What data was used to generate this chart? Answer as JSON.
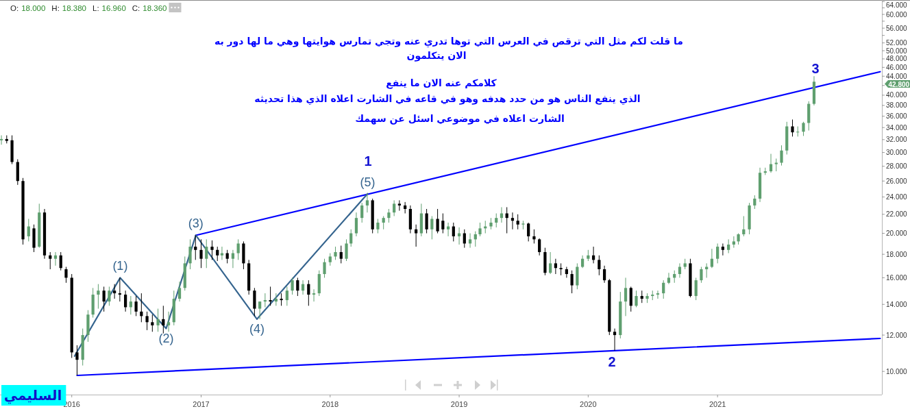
{
  "chart_data": {
    "type": "candlestick",
    "title": "O: 18.000 H: 18.380 L: 16.960 C: 18.360",
    "log": "y",
    "xlim": [
      "2015-06-12",
      "2022-04-11"
    ],
    "ylim": [
      8.9,
      64.5
    ],
    "xticks": [
      "2016",
      "2017",
      "2018",
      "2019",
      "2020",
      "2021"
    ],
    "yticks": [
      {
        "value": 10,
        "label": "10.000"
      },
      {
        "value": 12,
        "label": "12.000"
      },
      {
        "value": 14,
        "label": "14.000"
      },
      {
        "value": 16,
        "label": "16.000"
      },
      {
        "value": 18,
        "label": "18.000"
      },
      {
        "value": 20,
        "label": "20.000"
      },
      {
        "value": 22,
        "label": "22.000"
      },
      {
        "value": 24,
        "label": "24.000"
      },
      {
        "value": 26,
        "label": "26.000"
      },
      {
        "value": 28,
        "label": "28.000"
      },
      {
        "value": 30,
        "label": "30.000"
      },
      {
        "value": 32,
        "label": "32.000"
      },
      {
        "value": 34,
        "label": "34.000"
      },
      {
        "value": 36,
        "label": "36.000"
      },
      {
        "value": 38,
        "label": "38.000"
      },
      {
        "value": 40,
        "label": "40.000"
      },
      {
        "value": 42,
        "label": null
      },
      {
        "value": 44,
        "label": "44.000"
      },
      {
        "value": 46,
        "label": "46.000"
      },
      {
        "value": 48,
        "label": "48.000"
      },
      {
        "value": 50,
        "label": "50.000"
      },
      {
        "value": 52,
        "label": "52.000"
      },
      {
        "value": 54,
        "label": null
      },
      {
        "value": 56,
        "label": "56.000"
      },
      {
        "value": 58,
        "label": null
      },
      {
        "value": 60,
        "label": "60.000"
      },
      {
        "value": 62,
        "label": null
      },
      {
        "value": 64,
        "label": "64.000"
      }
    ],
    "x": [
      "2015-06-16",
      "2015-07-01",
      "2015-07-16",
      "2015-08-01",
      "2015-08-16",
      "2015-09-01",
      "2015-09-16",
      "2015-10-01",
      "2015-10-16",
      "2015-11-01",
      "2015-11-16",
      "2015-12-01",
      "2015-12-16",
      "2016-01-01",
      "2016-01-16",
      "2016-02-01",
      "2016-02-16",
      "2016-03-01",
      "2016-03-16",
      "2016-04-01",
      "2016-04-16",
      "2016-05-01",
      "2016-05-16",
      "2016-06-01",
      "2016-06-16",
      "2016-07-01",
      "2016-07-16",
      "2016-08-01",
      "2016-08-16",
      "2016-09-01",
      "2016-09-16",
      "2016-10-01",
      "2016-10-16",
      "2016-11-01",
      "2016-11-16",
      "2016-12-01",
      "2016-12-16",
      "2017-01-01",
      "2017-01-16",
      "2017-02-01",
      "2017-02-16",
      "2017-03-01",
      "2017-03-16",
      "2017-04-01",
      "2017-04-16",
      "2017-05-01",
      "2017-05-16",
      "2017-06-01",
      "2017-06-16",
      "2017-07-01",
      "2017-07-16",
      "2017-08-01",
      "2017-08-16",
      "2017-09-01",
      "2017-09-16",
      "2017-10-01",
      "2017-10-16",
      "2017-11-01",
      "2017-11-16",
      "2017-12-01",
      "2017-12-16",
      "2018-01-01",
      "2018-01-16",
      "2018-02-01",
      "2018-02-16",
      "2018-03-01",
      "2018-03-16",
      "2018-04-01",
      "2018-04-16",
      "2018-05-01",
      "2018-05-16",
      "2018-06-01",
      "2018-06-16",
      "2018-07-01",
      "2018-07-16",
      "2018-08-01",
      "2018-08-16",
      "2018-09-01",
      "2018-09-16",
      "2018-10-01",
      "2018-10-16",
      "2018-11-01",
      "2018-11-16",
      "2018-12-01",
      "2018-12-16",
      "2019-01-01",
      "2019-01-16",
      "2019-02-01",
      "2019-02-16",
      "2019-03-01",
      "2019-03-16",
      "2019-04-01",
      "2019-04-16",
      "2019-05-01",
      "2019-05-16",
      "2019-06-01",
      "2019-06-16",
      "2019-07-01",
      "2019-07-16",
      "2019-08-01",
      "2019-08-16",
      "2019-09-01",
      "2019-09-16",
      "2019-10-01",
      "2019-10-16",
      "2019-11-01",
      "2019-11-16",
      "2019-12-01",
      "2019-12-16",
      "2020-01-01",
      "2020-01-16",
      "2020-02-01",
      "2020-02-16",
      "2020-03-01",
      "2020-03-16",
      "2020-04-01",
      "2020-04-16",
      "2020-05-01",
      "2020-05-16",
      "2020-06-01",
      "2020-06-16",
      "2020-07-01",
      "2020-07-16",
      "2020-08-01",
      "2020-08-16",
      "2020-09-01",
      "2020-09-16",
      "2020-10-01",
      "2020-10-16",
      "2020-11-01",
      "2020-11-16",
      "2020-12-01",
      "2020-12-16",
      "2021-01-01",
      "2021-01-16",
      "2021-02-01",
      "2021-02-16",
      "2021-03-01",
      "2021-03-16",
      "2021-04-01",
      "2021-04-16",
      "2021-05-01",
      "2021-05-16",
      "2021-06-01",
      "2021-06-16",
      "2021-07-01",
      "2021-07-16",
      "2021-08-01",
      "2021-08-16",
      "2021-09-01",
      "2021-09-16",
      "2021-10-01"
    ],
    "ohlc": [
      [
        31.9,
        32.7,
        31.2,
        32.1
      ],
      [
        32.1,
        32.7,
        31.4,
        31.8
      ],
      [
        31.9,
        32.7,
        28.3,
        28.6
      ],
      [
        28.6,
        29.0,
        25.5,
        26.0
      ],
      [
        26.0,
        26.4,
        18.9,
        19.4
      ],
      [
        19.7,
        21.5,
        19.2,
        20.7
      ],
      [
        20.5,
        20.9,
        18.2,
        18.6
      ],
      [
        18.7,
        23.2,
        18.6,
        22.2
      ],
      [
        22.2,
        22.6,
        17.6,
        17.9
      ],
      [
        17.9,
        18.2,
        16.7,
        17.6
      ],
      [
        17.6,
        18.2,
        17.0,
        17.9
      ],
      [
        17.9,
        18.2,
        16.6,
        16.8
      ],
      [
        16.7,
        16.9,
        15.6,
        16.0
      ],
      [
        16.0,
        16.3,
        10.7,
        11.0
      ],
      [
        11.0,
        11.4,
        9.8,
        10.6
      ],
      [
        10.6,
        12.4,
        10.3,
        12.0
      ],
      [
        12.0,
        13.6,
        11.6,
        13.3
      ],
      [
        13.3,
        15.2,
        13.1,
        14.7
      ],
      [
        14.7,
        15.5,
        13.7,
        15.0
      ],
      [
        15.0,
        15.3,
        13.5,
        14.2
      ],
      [
        14.2,
        15.3,
        13.9,
        15.0
      ],
      [
        15.0,
        15.5,
        14.4,
        14.8
      ],
      [
        14.8,
        16.0,
        14.2,
        14.7
      ],
      [
        14.7,
        15.0,
        13.5,
        13.8
      ],
      [
        13.8,
        14.6,
        13.3,
        14.2
      ],
      [
        14.2,
        14.6,
        13.2,
        13.5
      ],
      [
        13.5,
        14.8,
        12.8,
        13.2
      ],
      [
        13.2,
        13.5,
        12.3,
        12.8
      ],
      [
        12.8,
        13.3,
        12.2,
        12.6
      ],
      [
        12.6,
        13.7,
        12.2,
        13.0
      ],
      [
        13.0,
        13.9,
        12.1,
        12.6
      ],
      [
        12.6,
        13.5,
        12.2,
        12.8
      ],
      [
        12.8,
        15.0,
        12.6,
        14.4
      ],
      [
        14.4,
        15.7,
        14.2,
        15.2
      ],
      [
        15.2,
        17.8,
        15.0,
        17.2
      ],
      [
        17.2,
        19.4,
        16.7,
        18.7
      ],
      [
        18.7,
        19.8,
        17.5,
        18.4
      ],
      [
        18.4,
        19.4,
        16.8,
        17.6
      ],
      [
        17.6,
        19.4,
        16.8,
        18.7
      ],
      [
        18.7,
        19.3,
        17.5,
        18.4
      ],
      [
        18.4,
        18.7,
        17.4,
        17.9
      ],
      [
        17.9,
        18.7,
        17.5,
        18.1
      ],
      [
        18.1,
        18.4,
        17.2,
        17.6
      ],
      [
        17.6,
        18.4,
        16.8,
        18.1
      ],
      [
        18.1,
        19.4,
        17.5,
        19.0
      ],
      [
        19.0,
        19.2,
        16.7,
        17.2
      ],
      [
        17.2,
        17.5,
        14.7,
        15.0
      ],
      [
        15.0,
        15.2,
        13.2,
        13.7
      ],
      [
        13.7,
        14.2,
        13.0,
        14.2
      ],
      [
        14.2,
        14.8,
        13.8,
        14.3
      ],
      [
        14.3,
        15.3,
        13.9,
        14.2
      ],
      [
        14.2,
        14.8,
        13.9,
        14.4
      ],
      [
        14.4,
        14.8,
        13.9,
        14.3
      ],
      [
        14.3,
        15.3,
        13.9,
        15.0
      ],
      [
        15.0,
        16.0,
        14.7,
        15.8
      ],
      [
        15.8,
        16.0,
        14.6,
        15.0
      ],
      [
        15.0,
        15.8,
        14.7,
        15.5
      ],
      [
        15.5,
        15.8,
        13.9,
        14.7
      ],
      [
        14.7,
        15.1,
        14.2,
        14.8
      ],
      [
        14.8,
        16.6,
        14.6,
        16.3
      ],
      [
        16.3,
        17.6,
        16.0,
        17.3
      ],
      [
        17.3,
        18.1,
        17.0,
        17.8
      ],
      [
        17.8,
        18.7,
        17.5,
        18.2
      ],
      [
        18.2,
        18.8,
        17.2,
        17.6
      ],
      [
        17.6,
        19.4,
        17.4,
        19.0
      ],
      [
        19.0,
        20.4,
        18.7,
        20.0
      ],
      [
        20.0,
        22.2,
        19.7,
        21.6
      ],
      [
        21.6,
        23.3,
        21.1,
        23.0
      ],
      [
        23.0,
        24.4,
        22.2,
        23.6
      ],
      [
        23.6,
        23.8,
        20.0,
        20.4
      ],
      [
        20.4,
        21.5,
        20.0,
        21.1
      ],
      [
        21.1,
        21.8,
        20.4,
        21.6
      ],
      [
        21.6,
        22.6,
        21.1,
        22.2
      ],
      [
        22.2,
        23.6,
        21.8,
        23.2
      ],
      [
        23.2,
        23.6,
        22.4,
        23.0
      ],
      [
        23.0,
        23.4,
        22.1,
        22.6
      ],
      [
        22.6,
        23.0,
        20.0,
        20.4
      ],
      [
        20.4,
        20.9,
        18.7,
        20.0
      ],
      [
        20.0,
        23.2,
        19.7,
        22.1
      ],
      [
        22.1,
        22.6,
        20.0,
        20.4
      ],
      [
        20.4,
        21.8,
        19.4,
        21.5
      ],
      [
        21.5,
        22.6,
        20.0,
        20.2
      ],
      [
        21.3,
        22.1,
        20.0,
        20.4
      ],
      [
        20.4,
        21.1,
        19.7,
        20.7
      ],
      [
        20.7,
        21.1,
        19.2,
        19.7
      ],
      [
        19.7,
        20.6,
        18.9,
        20.0
      ],
      [
        20.0,
        20.4,
        18.6,
        19.0
      ],
      [
        19.0,
        20.0,
        18.6,
        19.4
      ],
      [
        19.4,
        20.2,
        18.7,
        19.9
      ],
      [
        19.9,
        21.1,
        19.7,
        20.5
      ],
      [
        20.5,
        21.3,
        20.0,
        20.7
      ],
      [
        20.7,
        21.6,
        20.4,
        21.1
      ],
      [
        21.1,
        22.1,
        20.6,
        21.6
      ],
      [
        21.6,
        22.8,
        21.1,
        22.1
      ],
      [
        22.1,
        22.8,
        20.0,
        21.6
      ],
      [
        21.6,
        22.2,
        20.4,
        21.3
      ],
      [
        21.3,
        22.0,
        20.4,
        20.9
      ],
      [
        20.9,
        21.3,
        20.4,
        21.0
      ],
      [
        21.0,
        21.1,
        19.2,
        19.7
      ],
      [
        19.7,
        20.4,
        19.0,
        19.4
      ],
      [
        19.4,
        19.5,
        17.9,
        18.2
      ],
      [
        18.2,
        18.6,
        16.2,
        16.4
      ],
      [
        16.4,
        18.2,
        16.3,
        17.2
      ],
      [
        17.2,
        17.6,
        16.3,
        16.8
      ],
      [
        16.8,
        17.2,
        16.2,
        16.7
      ],
      [
        16.7,
        16.9,
        16.0,
        16.3
      ],
      [
        16.3,
        16.6,
        14.8,
        15.4
      ],
      [
        15.4,
        17.2,
        15.1,
        16.9
      ],
      [
        16.9,
        17.9,
        16.8,
        17.6
      ],
      [
        17.6,
        18.4,
        17.4,
        17.9
      ],
      [
        17.9,
        18.7,
        17.2,
        17.5
      ],
      [
        17.5,
        17.9,
        16.2,
        16.7
      ],
      [
        16.7,
        17.0,
        15.6,
        15.8
      ],
      [
        15.8,
        15.9,
        12.0,
        12.2
      ],
      [
        12.2,
        12.4,
        11.1,
        12.0
      ],
      [
        12.0,
        14.9,
        11.8,
        14.2
      ],
      [
        14.2,
        16.0,
        13.2,
        15.2
      ],
      [
        15.2,
        15.3,
        13.5,
        13.9
      ],
      [
        13.9,
        15.0,
        13.8,
        14.6
      ],
      [
        14.6,
        15.0,
        14.1,
        14.4
      ],
      [
        14.4,
        14.8,
        14.1,
        14.6
      ],
      [
        14.6,
        15.0,
        14.3,
        14.7
      ],
      [
        14.7,
        15.0,
        14.4,
        14.8
      ],
      [
        14.8,
        15.8,
        14.4,
        15.6
      ],
      [
        15.6,
        16.4,
        15.5,
        16.0
      ],
      [
        16.0,
        16.6,
        15.6,
        16.3
      ],
      [
        16.3,
        17.2,
        16.0,
        16.9
      ],
      [
        16.9,
        17.6,
        16.7,
        17.2
      ],
      [
        17.2,
        17.6,
        14.5,
        14.6
      ],
      [
        14.6,
        16.0,
        14.3,
        15.8
      ],
      [
        15.8,
        16.9,
        15.6,
        16.7
      ],
      [
        16.7,
        17.2,
        16.0,
        16.9
      ],
      [
        16.9,
        18.5,
        16.8,
        17.6
      ],
      [
        17.6,
        19.0,
        17.2,
        18.7
      ],
      [
        18.7,
        19.0,
        17.9,
        18.4
      ],
      [
        18.4,
        19.4,
        18.1,
        18.9
      ],
      [
        18.9,
        19.7,
        18.6,
        19.2
      ],
      [
        19.2,
        20.0,
        18.9,
        19.9
      ],
      [
        19.9,
        21.8,
        19.7,
        20.4
      ],
      [
        20.4,
        23.3,
        19.9,
        23.0
      ],
      [
        23.0,
        24.2,
        22.6,
        23.8
      ],
      [
        23.8,
        27.8,
        23.4,
        27.1
      ],
      [
        27.1,
        27.8,
        26.8,
        27.3
      ],
      [
        27.3,
        29.8,
        27.1,
        28.3
      ],
      [
        28.3,
        29.1,
        27.3,
        28.5
      ],
      [
        28.5,
        31.1,
        28.1,
        30.3
      ],
      [
        30.3,
        35.0,
        29.7,
        34.2
      ],
      [
        34.2,
        35.4,
        32.5,
        33.2
      ],
      [
        33.2,
        34.2,
        32.5,
        33.3
      ],
      [
        33.3,
        35.0,
        32.6,
        34.8
      ],
      [
        34.8,
        38.8,
        33.5,
        38.3
      ],
      [
        38.3,
        44.0,
        38.0,
        42.8
      ]
    ],
    "colors": [
      "#5f9f6f",
      "#000000",
      "#000000",
      "#000000",
      "#000000",
      "#5f9f6f",
      "#000000",
      "#5f9f6f",
      "#000000",
      "#000000",
      "#5f9f6f",
      "#000000",
      "#000000",
      "#000000",
      "#000000",
      "#5f9f6f",
      "#5f9f6f",
      "#5f9f6f",
      "#5f9f6f",
      "#000000",
      "#5f9f6f",
      "#000000",
      "#000000",
      "#000000",
      "#5f9f6f",
      "#000000",
      "#000000",
      "#000000",
      "#000000",
      "#5f9f6f",
      "#000000",
      "#5f9f6f",
      "#5f9f6f",
      "#5f9f6f",
      "#5f9f6f",
      "#5f9f6f",
      "#000000",
      "#000000",
      "#5f9f6f",
      "#000000",
      "#000000",
      "#5f9f6f",
      "#000000",
      "#5f9f6f",
      "#5f9f6f",
      "#000000",
      "#000000",
      "#000000",
      "#5f9f6f",
      "#5f9f6f",
      "#000000",
      "#5f9f6f",
      "#000000",
      "#5f9f6f",
      "#5f9f6f",
      "#000000",
      "#5f9f6f",
      "#000000",
      "#5f9f6f",
      "#5f9f6f",
      "#5f9f6f",
      "#5f9f6f",
      "#5f9f6f",
      "#000000",
      "#5f9f6f",
      "#5f9f6f",
      "#5f9f6f",
      "#5f9f6f",
      "#5f9f6f",
      "#000000",
      "#5f9f6f",
      "#5f9f6f",
      "#5f9f6f",
      "#5f9f6f",
      "#000000",
      "#000000",
      "#000000",
      "#000000",
      "#5f9f6f",
      "#000000",
      "#5f9f6f",
      "#000000",
      "#000000",
      "#5f9f6f",
      "#000000",
      "#5f9f6f",
      "#000000",
      "#5f9f6f",
      "#5f9f6f",
      "#5f9f6f",
      "#5f9f6f",
      "#5f9f6f",
      "#5f9f6f",
      "#5f9f6f",
      "#000000",
      "#000000",
      "#000000",
      "#5f9f6f",
      "#000000",
      "#000000",
      "#000000",
      "#000000",
      "#5f9f6f",
      "#000000",
      "#000000",
      "#000000",
      "#000000",
      "#5f9f6f",
      "#5f9f6f",
      "#5f9f6f",
      "#000000",
      "#000000",
      "#000000",
      "#000000",
      "#000000",
      "#5f9f6f",
      "#5f9f6f",
      "#000000",
      "#5f9f6f",
      "#000000",
      "#5f9f6f",
      "#5f9f6f",
      "#5f9f6f",
      "#5f9f6f",
      "#5f9f6f",
      "#5f9f6f",
      "#5f9f6f",
      "#5f9f6f",
      "#000000",
      "#5f9f6f",
      "#5f9f6f",
      "#5f9f6f",
      "#5f9f6f",
      "#5f9f6f",
      "#000000",
      "#5f9f6f",
      "#5f9f6f",
      "#5f9f6f",
      "#5f9f6f",
      "#5f9f6f",
      "#5f9f6f",
      "#5f9f6f",
      "#5f9f6f",
      "#5f9f6f",
      "#5f9f6f",
      "#5f9f6f",
      "#5f9f6f",
      "#000000",
      "#5f9f6f",
      "#5f9f6f",
      "#5f9f6f",
      "#5f9f6f"
    ],
    "series": [
      {
        "type": "line",
        "color": "#0000ff",
        "x": [
          "2016-12-17",
          "2022-04-06"
        ],
        "values": [
          19.8,
          45.0
        ]
      },
      {
        "type": "line",
        "color": "#0000ff",
        "x": [
          "2016-01-16",
          "2022-04-06"
        ],
        "values": [
          9.8,
          11.8
        ]
      },
      {
        "type": "line",
        "color": "#36658f",
        "x": [
          "2016-01-09",
          "2016-05-17",
          "2016-09-24",
          "2016-12-17",
          "2017-06-08",
          "2018-04-17"
        ],
        "values": [
          10.8,
          16.0,
          12.4,
          19.8,
          13.0,
          24.4
        ]
      }
    ],
    "annotations": [
      "ما قلت لكم مثل التي ترقص في العرس التي توها تدري عنه وتجي تمارس هوايتها وهي ما لها دور به",
      "الان يتكلمون",
      "كلامكم عنه الان ما ينفع",
      "الذي ينفع الناس هو من حدد هدفه وهو في قاعه في الشارت اعلاه الذي هذا تحديثه",
      "الشارت اعلاه في موضوعي اسئل عن سهمك",
      "السليمي",
      "1",
      "2",
      "3",
      "42.800",
      {
        "text": "(1)",
        "x": "2016-05-17",
        "y": 16.0
      },
      {
        "text": "(2)",
        "x": "2016-09-24",
        "y": 12.4
      },
      {
        "text": "(3)",
        "x": "2016-12-17",
        "y": 19.8
      },
      {
        "text": "(4)",
        "x": "2017-06-08",
        "y": 13.0
      },
      {
        "text": "(5)",
        "x": "2018-04-17",
        "y": 24.4
      }
    ]
  }
}
